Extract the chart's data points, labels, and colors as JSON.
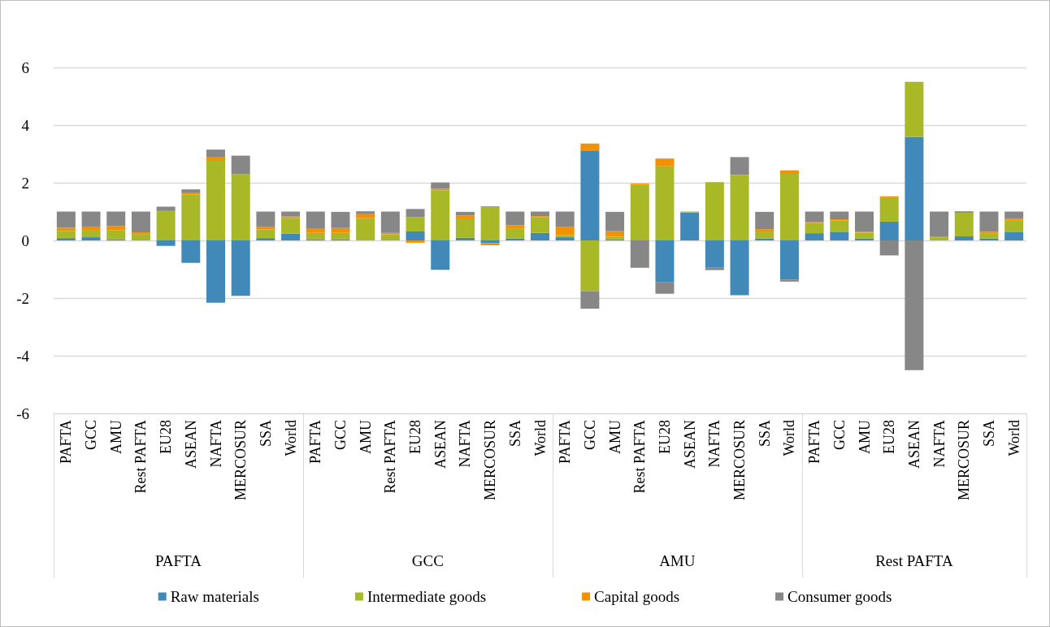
{
  "chart_data": {
    "type": "bar",
    "stacked": true,
    "categories": [
      "PAFTA",
      "GCC",
      "AMU",
      "Rest PAFTA",
      "EU28",
      "ASEAN",
      "NAFTA",
      "MERCOSUR",
      "SSA",
      "World",
      "PAFTA",
      "GCC",
      "AMU",
      "Rest PAFTA",
      "EU28",
      "ASEAN",
      "NAFTA",
      "MERCOSUR",
      "SSA",
      "World",
      "PAFTA",
      "GCC",
      "AMU",
      "Rest PAFTA",
      "EU28",
      "ASEAN",
      "NAFTA",
      "MERCOSUR",
      "SSA",
      "World",
      "PAFTA",
      "GCC",
      "AMU",
      "EU28",
      "ASEAN",
      "NAFTA",
      "MERCOSUR",
      "SSA",
      "World"
    ],
    "annotations": [
      "PAFTA",
      "GCC",
      "AMU",
      "Rest PAFTA"
    ],
    "series": [
      {
        "name": "Raw materials",
        "color": "#4189b8",
        "values": [
          0.08,
          0.11,
          0.04,
          0.02,
          -0.19,
          -0.78,
          -2.16,
          -1.92,
          0.08,
          0.24,
          0.04,
          0.04,
          0,
          0,
          0.31,
          -1.02,
          0.09,
          -0.1,
          0.07,
          0.26,
          0.11,
          3.12,
          0.04,
          0,
          -1.44,
          0.97,
          -0.95,
          -1.9,
          0.07,
          -1.36,
          0.25,
          0.28,
          0.07,
          0.65,
          3.59,
          0,
          0.14,
          0.07,
          0.3
        ]
      },
      {
        "name": "Intermediate goods",
        "color": "#a8b827",
        "values": [
          0.25,
          0.23,
          0.32,
          0.2,
          1.02,
          1.59,
          2.76,
          2.3,
          0.3,
          0.54,
          0.22,
          0.22,
          0.77,
          0.21,
          0.5,
          1.74,
          0.67,
          1.15,
          0.33,
          0.55,
          0.07,
          -1.76,
          0.09,
          1.94,
          2.57,
          0.03,
          2.02,
          2.27,
          0.24,
          2.31,
          0.35,
          0.42,
          0.2,
          0.82,
          1.91,
          0.11,
          0.82,
          0.18,
          0.4
        ]
      },
      {
        "name": "Capital goods",
        "color": "#f39200",
        "values": [
          0.11,
          0.14,
          0.14,
          0.06,
          0,
          0.05,
          0.12,
          0,
          0.1,
          0.05,
          0.14,
          0.17,
          0.16,
          0.05,
          -0.08,
          0.05,
          0.1,
          -0.07,
          0.12,
          0.03,
          0.28,
          0.24,
          0.19,
          0.03,
          0.27,
          0,
          0,
          0,
          0.08,
          0.12,
          0.03,
          0.03,
          0.03,
          0.06,
          0,
          0.03,
          0,
          0.05,
          0.05
        ]
      },
      {
        "name": "Consumer goods",
        "color": "#878787",
        "values": [
          0.56,
          0.52,
          0.5,
          0.72,
          0.15,
          0.13,
          0.27,
          0.64,
          0.52,
          0.17,
          0.6,
          0.56,
          0.08,
          0.74,
          0.28,
          0.22,
          0.13,
          0.03,
          0.48,
          0.16,
          0.54,
          -0.61,
          0.67,
          -0.95,
          -0.41,
          0,
          -0.08,
          0.62,
          0.6,
          -0.07,
          0.37,
          0.27,
          0.7,
          -0.52,
          -4.5,
          0.86,
          0.05,
          0.7,
          0.25
        ]
      }
    ],
    "ylim": [
      -6,
      6
    ],
    "yticks": [
      -6,
      -4,
      -2,
      0,
      2,
      4,
      6
    ],
    "grid": "y",
    "legend": "bottom"
  }
}
